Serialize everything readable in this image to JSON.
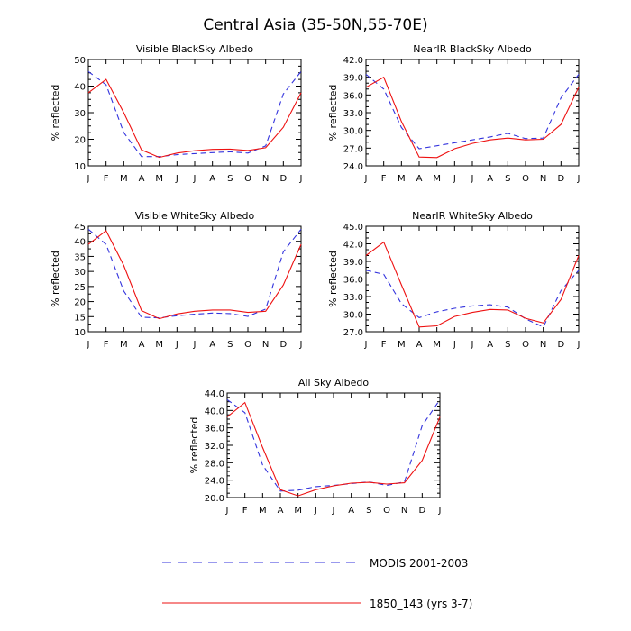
{
  "page_title": "Central Asia (35-50N,55-70E)",
  "legend": [
    {
      "label": "MODIS 2001-2003",
      "color": "#3333dd",
      "style": "dashed"
    },
    {
      "label": "1850_143 (yrs 3-7)",
      "color": "#ee1111",
      "style": "solid"
    }
  ],
  "chart_data": [
    {
      "type": "line",
      "title": "Visible BlackSky Albedo",
      "xlabel": "",
      "ylabel": "% reflected",
      "categories": [
        "J",
        "F",
        "M",
        "A",
        "M",
        "J",
        "J",
        "A",
        "S",
        "O",
        "N",
        "D",
        "J"
      ],
      "ylim": [
        10,
        50
      ],
      "yticks": [
        10,
        20,
        30,
        40,
        50
      ],
      "ytick_labels": [
        "10",
        "20",
        "30",
        "40",
        "50"
      ],
      "minor_per_major": 4,
      "series": [
        {
          "name": "MODIS 2001-2003",
          "values": [
            45.5,
            40.5,
            22.5,
            13.5,
            13.5,
            14.2,
            14.6,
            15.0,
            15.3,
            14.8,
            17.5,
            37.0,
            45.5
          ]
        },
        {
          "name": "1850_143 (yrs 3-7)",
          "values": [
            37.5,
            42.5,
            30.0,
            16.0,
            13.2,
            14.8,
            15.7,
            16.2,
            16.3,
            15.8,
            16.8,
            24.5,
            37.5
          ]
        }
      ]
    },
    {
      "type": "line",
      "title": "NearIR BlackSky Albedo",
      "xlabel": "",
      "ylabel": "% reflected",
      "categories": [
        "J",
        "F",
        "M",
        "A",
        "M",
        "J",
        "J",
        "A",
        "S",
        "O",
        "N",
        "D",
        "J"
      ],
      "ylim": [
        24,
        42
      ],
      "yticks": [
        24,
        27,
        30,
        33,
        36,
        39,
        42
      ],
      "ytick_labels": [
        "24.0",
        "27.0",
        "30.0",
        "33.0",
        "36.0",
        "39.0",
        "42.0"
      ],
      "minor_per_major": 3,
      "series": [
        {
          "name": "MODIS 2001-2003",
          "values": [
            39.5,
            37.0,
            30.5,
            26.9,
            27.4,
            27.9,
            28.4,
            28.9,
            29.5,
            28.6,
            28.7,
            35.5,
            39.5
          ]
        },
        {
          "name": "1850_143 (yrs 3-7)",
          "values": [
            37.3,
            39.0,
            31.5,
            25.5,
            25.4,
            26.9,
            27.8,
            28.4,
            28.7,
            28.4,
            28.5,
            31.0,
            37.3
          ]
        }
      ]
    },
    {
      "type": "line",
      "title": "Visible WhiteSky Albedo",
      "xlabel": "",
      "ylabel": "% reflected",
      "categories": [
        "J",
        "F",
        "M",
        "A",
        "M",
        "J",
        "J",
        "A",
        "S",
        "O",
        "N",
        "D",
        "J"
      ],
      "ylim": [
        10,
        45
      ],
      "yticks": [
        10,
        15,
        20,
        25,
        30,
        35,
        40,
        45
      ],
      "ytick_labels": [
        "10",
        "15",
        "20",
        "25",
        "30",
        "35",
        "40",
        "45"
      ],
      "minor_per_major": 2,
      "series": [
        {
          "name": "MODIS 2001-2003",
          "values": [
            44.0,
            39.0,
            23.5,
            14.8,
            14.6,
            15.3,
            15.8,
            16.2,
            16.0,
            15.1,
            17.5,
            36.5,
            44.0
          ]
        },
        {
          "name": "1850_143 (yrs 3-7)",
          "values": [
            39.0,
            43.5,
            32.0,
            17.0,
            14.3,
            15.9,
            16.8,
            17.2,
            17.2,
            16.4,
            16.8,
            25.5,
            39.0
          ]
        }
      ]
    },
    {
      "type": "line",
      "title": "NearIR WhiteSky Albedo",
      "xlabel": "",
      "ylabel": "% reflected",
      "categories": [
        "J",
        "F",
        "M",
        "A",
        "M",
        "J",
        "J",
        "A",
        "S",
        "O",
        "N",
        "D",
        "J"
      ],
      "ylim": [
        27,
        45
      ],
      "yticks": [
        27,
        30,
        33,
        36,
        39,
        42,
        45
      ],
      "ytick_labels": [
        "27.0",
        "30.0",
        "33.0",
        "36.0",
        "39.0",
        "42.0",
        "45.0"
      ],
      "minor_per_major": 3,
      "series": [
        {
          "name": "MODIS 2001-2003",
          "values": [
            37.5,
            36.8,
            31.8,
            29.4,
            30.4,
            31.0,
            31.4,
            31.6,
            31.2,
            29.2,
            27.8,
            34.0,
            37.5
          ]
        },
        {
          "name": "1850_143 (yrs 3-7)",
          "values": [
            40.0,
            42.3,
            35.0,
            27.8,
            28.0,
            29.6,
            30.3,
            30.8,
            30.7,
            29.3,
            28.5,
            32.5,
            40.0
          ]
        }
      ]
    },
    {
      "type": "line",
      "title": "All Sky Albedo",
      "xlabel": "",
      "ylabel": "% reflected",
      "categories": [
        "J",
        "F",
        "M",
        "A",
        "M",
        "J",
        "J",
        "A",
        "S",
        "O",
        "N",
        "D",
        "J"
      ],
      "ylim": [
        20,
        44
      ],
      "yticks": [
        20,
        24,
        28,
        32,
        36,
        40,
        44
      ],
      "ytick_labels": [
        "20.0",
        "24.0",
        "28.0",
        "32.0",
        "36.0",
        "40.0",
        "44.0"
      ],
      "minor_per_major": 4,
      "series": [
        {
          "name": "MODIS 2001-2003",
          "values": [
            42.5,
            39.5,
            27.5,
            21.5,
            21.7,
            22.5,
            22.8,
            23.2,
            23.6,
            22.8,
            23.6,
            36.5,
            42.5
          ]
        },
        {
          "name": "1850_143 (yrs 3-7)",
          "values": [
            38.5,
            41.8,
            31.5,
            21.8,
            20.4,
            21.8,
            22.7,
            23.3,
            23.5,
            23.1,
            23.4,
            28.5,
            38.5
          ]
        }
      ]
    }
  ]
}
